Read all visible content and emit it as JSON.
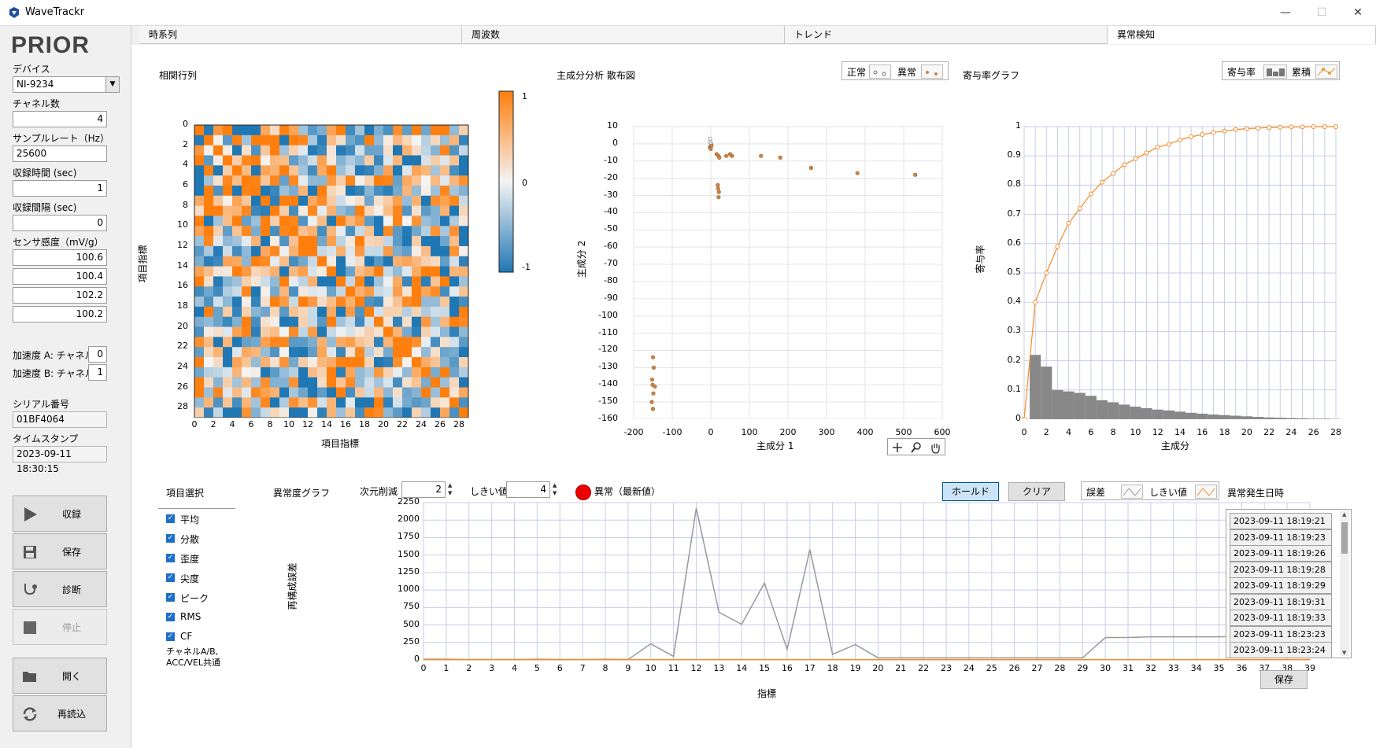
{
  "window": {
    "title": "WaveTrackr",
    "minimize": "—",
    "maximize": "☐",
    "close": "✕"
  },
  "logo": "PRIOR",
  "settings": {
    "device_label": "デバイス",
    "device_value": "NI-9234",
    "channels_label": "チャネル数",
    "channels_value": "4",
    "samplerate_label": "サンプルレート（Hz）",
    "samplerate_value": "25600",
    "acqtime_label": "収録時間 (sec)",
    "acqtime_value": "1",
    "interval_label": "収録間隔 (sec)",
    "interval_value": "0",
    "sensitivity_label": "センサ感度（mV/g）",
    "sensitivity_values": [
      "100.6",
      "100.4",
      "102.2",
      "100.2"
    ],
    "accA_label": "加速度 A:  チャネル",
    "accA_value": "0",
    "accB_label": "加速度 B:  チャネル",
    "accB_value": "1",
    "serial_label": "シリアル番号",
    "serial_value": "01BF4064",
    "timestamp_label": "タイムスタンプ",
    "timestamp_value": "2023-09-11 18:30:15"
  },
  "buttons": {
    "record": "収録",
    "save": "保存",
    "diagnose": "診断",
    "stop": "停止",
    "open": "開く",
    "reload": "再読込"
  },
  "tabs": [
    "時系列",
    "周波数",
    "トレンド",
    "異常検知"
  ],
  "heatmap": {
    "title": "相関行列",
    "xlabel": "項目指標",
    "ylabel": "項目指標",
    "ticks": [
      "0",
      "2",
      "4",
      "6",
      "8",
      "10",
      "12",
      "14",
      "16",
      "18",
      "20",
      "22",
      "24",
      "26",
      "28"
    ],
    "colorbar": [
      "1",
      "0",
      "-1"
    ],
    "colors": {
      "pos": "#ff7f0e",
      "neg": "#1f77b4"
    }
  },
  "scatter": {
    "title": "主成分分析 散布図",
    "xlabel": "主成分 1",
    "ylabel": "主成分 2",
    "legend_normal": "正常",
    "legend_abnormal": "異常",
    "xticks": [
      "-200",
      "-100",
      "0",
      "100",
      "200",
      "300",
      "400",
      "500",
      "600"
    ],
    "yticks": [
      "10",
      "0",
      "-10",
      "-20",
      "-30",
      "-40",
      "-50",
      "-60",
      "-70",
      "-80",
      "-90",
      "-100",
      "-110",
      "-120",
      "-130",
      "-140",
      "-150",
      "-160"
    ]
  },
  "contribution": {
    "title": "寄与率グラフ",
    "xlabel": "主成分",
    "ylabel": "寄与率",
    "legend_rate": "寄与率",
    "legend_cumulative": "累積",
    "xticks": [
      "0",
      "2",
      "4",
      "6",
      "8",
      "10",
      "12",
      "14",
      "16",
      "18",
      "20",
      "22",
      "24",
      "26",
      "28"
    ],
    "yticks": [
      "1",
      "0.9",
      "0.8",
      "0.7",
      "0.6",
      "0.5",
      "0.4",
      "0.3",
      "0.2",
      "0.1",
      "0"
    ]
  },
  "features": {
    "title": "項目選択",
    "items": [
      "平均",
      "分散",
      "歪度",
      "尖度",
      "ピーク",
      "RMS",
      "CF"
    ],
    "note1": "チャネルA/B,",
    "note2": "ACC/VEL共通"
  },
  "anomaly": {
    "title": "異常度グラフ",
    "dimred_label": "次元削減",
    "dimred_value": "2",
    "threshold_label": "しきい値",
    "threshold_value": "4",
    "indicator_label": "異常（最新値）",
    "hold": "ホールド",
    "clear": "クリア",
    "legend_error": "誤差",
    "legend_threshold": "しきい値",
    "xlabel": "指標",
    "ylabel": "再構成誤差",
    "xticks": [
      "0",
      "1",
      "2",
      "3",
      "4",
      "5",
      "6",
      "7",
      "8",
      "9",
      "10",
      "11",
      "12",
      "13",
      "14",
      "15",
      "16",
      "17",
      "18",
      "19",
      "20",
      "21",
      "22",
      "23",
      "24",
      "25",
      "26",
      "27",
      "28",
      "29",
      "30",
      "31",
      "32",
      "33",
      "34",
      "35",
      "36",
      "37",
      "38",
      "39"
    ],
    "yticks": [
      "2250",
      "2000",
      "1750",
      "1500",
      "1250",
      "1000",
      "750",
      "500",
      "250",
      "0"
    ]
  },
  "history": {
    "title": "異常発生日時",
    "save": "保存",
    "items": [
      "2023-09-11 18:19:21",
      "2023-09-11 18:19:23",
      "2023-09-11 18:19:26",
      "2023-09-11 18:19:28",
      "2023-09-11 18:19:29",
      "2023-09-11 18:19:31",
      "2023-09-11 18:19:33",
      "2023-09-11 18:23:23",
      "2023-09-11 18:23:24"
    ]
  },
  "chart_data": [
    {
      "type": "heatmap",
      "title": "相関行列",
      "xlabel": "項目指標",
      "ylabel": "項目指標",
      "size": 29,
      "range": [
        -1,
        1
      ]
    },
    {
      "type": "scatter",
      "title": "主成分分析 散布図",
      "xlabel": "主成分 1",
      "ylabel": "主成分 2",
      "xlim": [
        -200,
        600
      ],
      "ylim": [
        -160,
        10
      ],
      "series": [
        {
          "name": "正常",
          "x": [
            -2,
            -1,
            0,
            -3,
            1
          ],
          "y": [
            3,
            1,
            -1,
            -2,
            0
          ]
        },
        {
          "name": "異常",
          "x": [
            -1,
            0,
            2,
            15,
            20,
            22,
            18,
            19,
            21,
            20,
            40,
            50,
            55,
            130,
            180,
            260,
            380,
            530,
            -150,
            -148,
            -152,
            -151,
            -149,
            -145,
            -153,
            -150
          ],
          "y": [
            -2,
            -3,
            -1,
            -6,
            -7,
            -8,
            -24,
            -26,
            -28,
            -31,
            -7,
            -6,
            -7,
            -7,
            -8,
            -14,
            -17,
            -18,
            -124,
            -130,
            -137,
            -140,
            -145,
            -141,
            -150,
            -154
          ]
        }
      ]
    },
    {
      "type": "bar",
      "title": "寄与率グラフ",
      "xlabel": "主成分",
      "ylabel": "寄与率",
      "xlim": [
        0,
        28
      ],
      "ylim": [
        0,
        1
      ],
      "values": [
        0.22,
        0.18,
        0.1,
        0.095,
        0.09,
        0.08,
        0.065,
        0.058,
        0.05,
        0.043,
        0.038,
        0.033,
        0.03,
        0.026,
        0.022,
        0.019,
        0.016,
        0.014,
        0.012,
        0.01,
        0.008,
        0.006,
        0.005,
        0.004,
        0.003,
        0.002,
        0.002,
        0.001
      ],
      "cumulative": [
        0,
        0.4,
        0.5,
        0.59,
        0.67,
        0.72,
        0.77,
        0.81,
        0.84,
        0.87,
        0.89,
        0.91,
        0.93,
        0.94,
        0.955,
        0.965,
        0.973,
        0.98,
        0.985,
        0.99,
        0.993,
        0.995,
        0.997,
        0.998,
        0.999,
        0.999,
        1.0,
        1.0,
        1.0
      ]
    },
    {
      "type": "line",
      "title": "異常度グラフ",
      "xlabel": "指標",
      "ylabel": "再構成誤差",
      "xlim": [
        0,
        39
      ],
      "ylim": [
        0,
        2250
      ],
      "series": [
        {
          "name": "誤差",
          "values": [
            10,
            10,
            5,
            5,
            5,
            10,
            5,
            5,
            10,
            5,
            230,
            50,
            2170,
            680,
            510,
            1100,
            150,
            1580,
            80,
            220,
            30,
            30,
            30,
            30,
            30,
            30,
            30,
            30,
            30,
            30,
            320,
            320,
            330,
            330,
            330,
            330,
            340,
            340,
            330,
            310
          ]
        },
        {
          "name": "しきい値",
          "values": [
            4,
            4,
            4,
            4,
            4,
            4,
            4,
            4,
            4,
            4,
            4,
            4,
            4,
            4,
            4,
            4,
            4,
            4,
            4,
            4,
            4,
            4,
            4,
            4,
            4,
            4,
            4,
            4,
            4,
            4,
            4,
            4,
            4,
            4,
            4,
            4,
            4,
            4,
            4,
            4
          ]
        }
      ]
    }
  ]
}
